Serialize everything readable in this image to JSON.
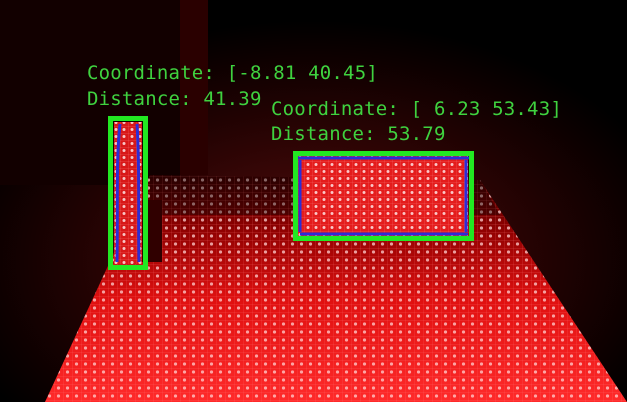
{
  "detections": [
    {
      "coordinate_text": "Coordinate: [-8.81 40.45]",
      "distance_text": "Distance: 41.39"
    },
    {
      "coordinate_text": "Coordinate: [ 6.23 53.43]",
      "distance_text": "Distance: 53.79"
    }
  ],
  "colors": {
    "box": "#22e822",
    "label_text": "#3fd23f",
    "contour": "#2a2cd8",
    "grid_red": "#ff2020",
    "grid_highlight": "#ffd8d8",
    "background": "#000000"
  }
}
